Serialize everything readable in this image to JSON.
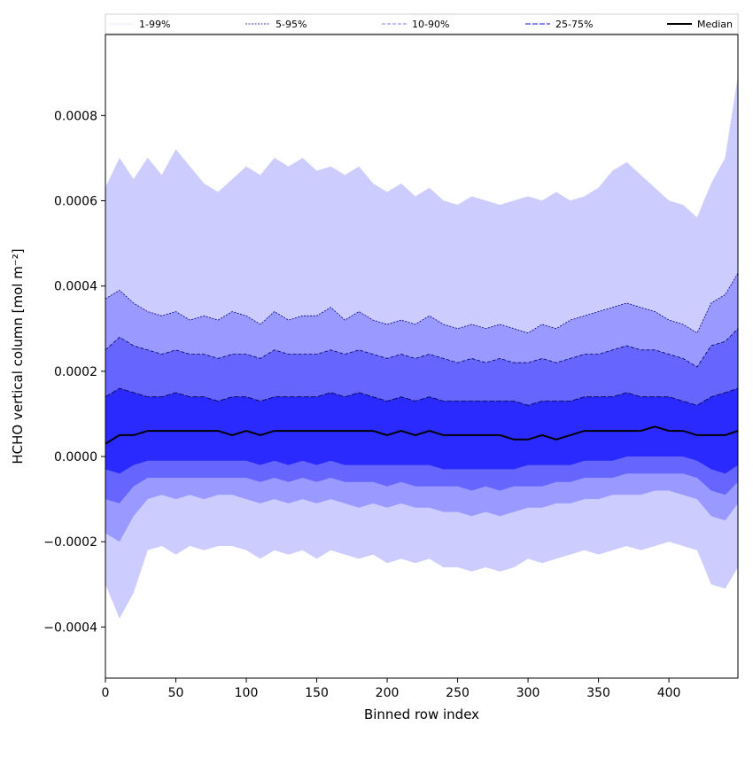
{
  "chart_data": {
    "type": "area",
    "xlabel": "Binned row index",
    "ylabel": "HCHO vertical column [mol m⁻²]",
    "xlim": [
      0,
      449
    ],
    "ylim": [
      -0.00052,
      0.00099
    ],
    "grid": false,
    "legend_placement": "top",
    "x_ticks": [
      0,
      50,
      100,
      150,
      200,
      250,
      300,
      350,
      400
    ],
    "x_tick_labels": [
      "0",
      "50",
      "100",
      "150",
      "200",
      "250",
      "300",
      "350",
      "400"
    ],
    "y_ticks": [
      -0.0004,
      -0.0002,
      0.0,
      0.0002,
      0.0004,
      0.0006,
      0.0008
    ],
    "y_tick_labels": [
      "−0.0004",
      "−0.0002",
      "0.0000",
      "0.0002",
      "0.0004",
      "0.0006",
      "0.0008"
    ],
    "x": [
      0,
      10,
      20,
      30,
      40,
      50,
      60,
      70,
      80,
      90,
      100,
      110,
      120,
      130,
      140,
      150,
      160,
      170,
      180,
      190,
      200,
      210,
      220,
      230,
      240,
      250,
      260,
      270,
      280,
      290,
      300,
      310,
      320,
      330,
      340,
      350,
      360,
      370,
      380,
      390,
      400,
      410,
      420,
      430,
      440,
      449
    ],
    "bands": [
      {
        "name": "1-99%",
        "color": "#ccccff",
        "line_color": "#c8c8f0",
        "dash": "1.5,1.5",
        "upper": [
          0.00063,
          0.0007,
          0.00065,
          0.0007,
          0.00066,
          0.00072,
          0.00068,
          0.00064,
          0.00062,
          0.00065,
          0.00068,
          0.00066,
          0.0007,
          0.00068,
          0.0007,
          0.00067,
          0.00068,
          0.00066,
          0.00068,
          0.00064,
          0.00062,
          0.00064,
          0.00061,
          0.00063,
          0.0006,
          0.00059,
          0.00061,
          0.0006,
          0.00059,
          0.0006,
          0.00061,
          0.0006,
          0.00062,
          0.0006,
          0.00061,
          0.00063,
          0.00067,
          0.00069,
          0.00066,
          0.00063,
          0.0006,
          0.00059,
          0.00056,
          0.00064,
          0.0007,
          0.00089
        ],
        "lower": [
          -0.0003,
          -0.00038,
          -0.00032,
          -0.00022,
          -0.00021,
          -0.00023,
          -0.00021,
          -0.00022,
          -0.00021,
          -0.00021,
          -0.00022,
          -0.00024,
          -0.00022,
          -0.00023,
          -0.00022,
          -0.00024,
          -0.00022,
          -0.00023,
          -0.00024,
          -0.00023,
          -0.00025,
          -0.00024,
          -0.00025,
          -0.00024,
          -0.00026,
          -0.00026,
          -0.00027,
          -0.00026,
          -0.00027,
          -0.00026,
          -0.00024,
          -0.00025,
          -0.00024,
          -0.00023,
          -0.00022,
          -0.00023,
          -0.00022,
          -0.00021,
          -0.00022,
          -0.00021,
          -0.0002,
          -0.00021,
          -0.00022,
          -0.0003,
          -0.00031,
          -0.00026
        ]
      },
      {
        "name": "5-95%",
        "color": "#9999ff",
        "line_color": "#000080",
        "dash": "2,1.5",
        "upper": [
          0.00037,
          0.00039,
          0.00036,
          0.00034,
          0.00033,
          0.00034,
          0.00032,
          0.00033,
          0.00032,
          0.00034,
          0.00033,
          0.00031,
          0.00034,
          0.00032,
          0.00033,
          0.00033,
          0.00035,
          0.00032,
          0.00034,
          0.00032,
          0.00031,
          0.00032,
          0.00031,
          0.00033,
          0.00031,
          0.0003,
          0.00031,
          0.0003,
          0.00031,
          0.0003,
          0.00029,
          0.00031,
          0.0003,
          0.00032,
          0.00033,
          0.00034,
          0.00035,
          0.00036,
          0.00035,
          0.00034,
          0.00032,
          0.00031,
          0.00029,
          0.00036,
          0.00038,
          0.00043
        ],
        "lower": [
          -0.00018,
          -0.0002,
          -0.00014,
          -0.0001,
          -9e-05,
          -0.0001,
          -9e-05,
          -0.0001,
          -9e-05,
          -9e-05,
          -0.0001,
          -0.00011,
          -0.0001,
          -0.00011,
          -0.0001,
          -0.00011,
          -0.0001,
          -0.00011,
          -0.00012,
          -0.00011,
          -0.00012,
          -0.00011,
          -0.00012,
          -0.00012,
          -0.00013,
          -0.00013,
          -0.00014,
          -0.00013,
          -0.00014,
          -0.00013,
          -0.00012,
          -0.00012,
          -0.00011,
          -0.00011,
          -0.0001,
          -0.0001,
          -9e-05,
          -9e-05,
          -9e-05,
          -8e-05,
          -8e-05,
          -9e-05,
          -0.0001,
          -0.00014,
          -0.00015,
          -0.00011
        ]
      },
      {
        "name": "10-90%",
        "color": "#6666ff",
        "line_color": "#000060",
        "dash": "4,2",
        "upper": [
          0.00025,
          0.00028,
          0.00026,
          0.00025,
          0.00024,
          0.00025,
          0.00024,
          0.00024,
          0.00023,
          0.00024,
          0.00024,
          0.00023,
          0.00025,
          0.00024,
          0.00024,
          0.00024,
          0.00025,
          0.00024,
          0.00025,
          0.00024,
          0.00023,
          0.00024,
          0.00023,
          0.00024,
          0.00023,
          0.00022,
          0.00023,
          0.00022,
          0.00023,
          0.00022,
          0.00022,
          0.00023,
          0.00022,
          0.00023,
          0.00024,
          0.00024,
          0.00025,
          0.00026,
          0.00025,
          0.00025,
          0.00024,
          0.00023,
          0.00021,
          0.00026,
          0.00027,
          0.0003
        ],
        "lower": [
          -0.0001,
          -0.00011,
          -7e-05,
          -5e-05,
          -5e-05,
          -5e-05,
          -5e-05,
          -5e-05,
          -5e-05,
          -5e-05,
          -5e-05,
          -6e-05,
          -5e-05,
          -6e-05,
          -5e-05,
          -6e-05,
          -5e-05,
          -6e-05,
          -6e-05,
          -6e-05,
          -7e-05,
          -6e-05,
          -7e-05,
          -7e-05,
          -7e-05,
          -7e-05,
          -8e-05,
          -7e-05,
          -8e-05,
          -7e-05,
          -7e-05,
          -7e-05,
          -6e-05,
          -6e-05,
          -5e-05,
          -5e-05,
          -5e-05,
          -4e-05,
          -4e-05,
          -4e-05,
          -4e-05,
          -4e-05,
          -5e-05,
          -8e-05,
          -9e-05,
          -6e-05
        ]
      },
      {
        "name": "25-75%",
        "color": "#2a2aff",
        "line_color": "#000040",
        "dash": "6,2",
        "upper": [
          0.00014,
          0.00016,
          0.00015,
          0.00014,
          0.00014,
          0.00015,
          0.00014,
          0.00014,
          0.00013,
          0.00014,
          0.00014,
          0.00013,
          0.00014,
          0.00014,
          0.00014,
          0.00014,
          0.00015,
          0.00014,
          0.00015,
          0.00014,
          0.00013,
          0.00014,
          0.00013,
          0.00014,
          0.00013,
          0.00013,
          0.00013,
          0.00013,
          0.00013,
          0.00013,
          0.00012,
          0.00013,
          0.00013,
          0.00013,
          0.00014,
          0.00014,
          0.00014,
          0.00015,
          0.00014,
          0.00014,
          0.00014,
          0.00013,
          0.00012,
          0.00014,
          0.00015,
          0.00016
        ],
        "lower": [
          -3e-05,
          -4e-05,
          -2e-05,
          -1e-05,
          -1e-05,
          -1e-05,
          -1e-05,
          -1e-05,
          -1e-05,
          -1e-05,
          -1e-05,
          -2e-05,
          -1e-05,
          -2e-05,
          -1e-05,
          -2e-05,
          -1e-05,
          -2e-05,
          -2e-05,
          -2e-05,
          -2e-05,
          -2e-05,
          -2e-05,
          -2e-05,
          -3e-05,
          -3e-05,
          -3e-05,
          -3e-05,
          -3e-05,
          -3e-05,
          -2e-05,
          -2e-05,
          -2e-05,
          -2e-05,
          -1e-05,
          -1e-05,
          -1e-05,
          0.0,
          0.0,
          0.0,
          0.0,
          0.0,
          -1e-05,
          -3e-05,
          -4e-05,
          -2e-05
        ]
      }
    ],
    "series": [
      {
        "name": "Median",
        "color": "#000000",
        "values": [
          3e-05,
          5e-05,
          5e-05,
          6e-05,
          6e-05,
          6e-05,
          6e-05,
          6e-05,
          6e-05,
          5e-05,
          6e-05,
          5e-05,
          6e-05,
          6e-05,
          6e-05,
          6e-05,
          6e-05,
          6e-05,
          6e-05,
          6e-05,
          5e-05,
          6e-05,
          5e-05,
          6e-05,
          5e-05,
          5e-05,
          5e-05,
          5e-05,
          5e-05,
          4e-05,
          4e-05,
          5e-05,
          4e-05,
          5e-05,
          6e-05,
          6e-05,
          6e-05,
          6e-05,
          6e-05,
          7e-05,
          6e-05,
          6e-05,
          5e-05,
          5e-05,
          5e-05,
          6e-05
        ]
      }
    ],
    "legend": [
      "1-99%",
      "5-95%",
      "10-90%",
      "25-75%",
      "Median"
    ]
  }
}
